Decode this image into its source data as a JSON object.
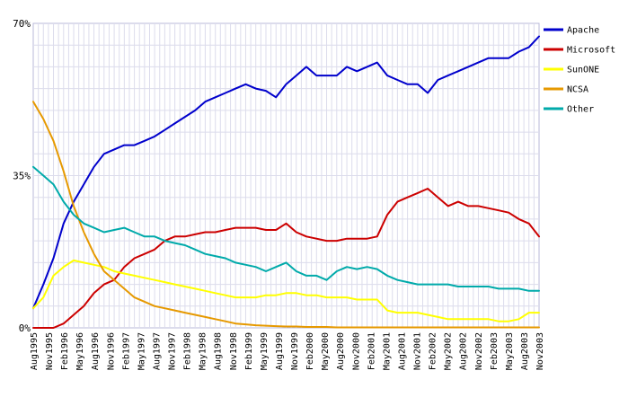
{
  "chart_data": {
    "type": "line",
    "title": "",
    "xlabel": "",
    "ylabel": "",
    "ylim": [
      0,
      70
    ],
    "y_tick_labels": [
      "0%",
      "35%",
      "70%"
    ],
    "y_tick_values": [
      0,
      35,
      70
    ],
    "grid": true,
    "legend_position": "top-right",
    "x_tick_labels": [
      "Aug1995",
      "Nov1995",
      "Feb1996",
      "May1996",
      "Aug1996",
      "Nov1996",
      "Feb1997",
      "May1997",
      "Aug1997",
      "Nov1997",
      "Feb1998",
      "May1998",
      "Aug1998",
      "Nov1998",
      "Feb1999",
      "May1999",
      "Aug1999",
      "Nov1999",
      "Feb2000",
      "May2000",
      "Aug2000",
      "Nov2000",
      "Feb2001",
      "May2001",
      "Aug2001",
      "Nov2001",
      "Feb2002",
      "May2002",
      "Aug2002",
      "Nov2002",
      "Feb2003",
      "May2003",
      "Aug2003",
      "Nov2003"
    ],
    "x": [
      "Aug1995",
      "Oct1995",
      "Dec1995",
      "Feb1996",
      "Apr1996",
      "Jun1996",
      "Aug1996",
      "Oct1996",
      "Dec1996",
      "Feb1997",
      "Apr1997",
      "Jun1997",
      "Aug1997",
      "Oct1997",
      "Dec1997",
      "Feb1998",
      "Apr1998",
      "Jun1998",
      "Aug1998",
      "Oct1998",
      "Dec1998",
      "Feb1999",
      "Apr1999",
      "Jun1999",
      "Aug1999",
      "Oct1999",
      "Dec1999",
      "Feb2000",
      "Apr2000",
      "Jun2000",
      "Aug2000",
      "Oct2000",
      "Dec2000",
      "Feb2001",
      "Apr2001",
      "Jun2001",
      "Aug2001",
      "Oct2001",
      "Dec2001",
      "Feb2002",
      "Apr2002",
      "Jun2002",
      "Aug2002",
      "Oct2002",
      "Dec2002",
      "Feb2003",
      "Apr2003",
      "Jun2003",
      "Aug2003",
      "Oct2003",
      "Nov2003"
    ],
    "series": [
      {
        "name": "Apache",
        "color": "#0000cc",
        "values": [
          4.5,
          10,
          16,
          24,
          29,
          33,
          37,
          40,
          41,
          42,
          42,
          43,
          44,
          45.5,
          47,
          48.5,
          50,
          52,
          53,
          54,
          55,
          56,
          55,
          54.5,
          53,
          56,
          58,
          60,
          58,
          58,
          58,
          60,
          59,
          60,
          61,
          58,
          57,
          56,
          56,
          54,
          57,
          58,
          59,
          60,
          61,
          62,
          62,
          62,
          63.5,
          64.5,
          67
        ]
      },
      {
        "name": "Microsoft",
        "color": "#cc0000",
        "values": [
          0,
          0,
          0,
          1,
          3,
          5,
          8,
          10,
          11,
          14,
          16,
          17,
          18,
          20,
          21,
          21,
          21.5,
          22,
          22,
          22.5,
          23,
          23,
          23,
          22.5,
          22.5,
          24,
          22,
          21,
          20.5,
          20,
          20,
          20.5,
          20.5,
          20.5,
          21,
          26,
          29,
          30,
          31,
          32,
          30,
          28,
          29,
          28,
          28,
          27.5,
          27,
          26.5,
          25,
          24,
          21
        ]
      },
      {
        "name": "SunONE",
        "color": "#ffff00",
        "values": [
          4.5,
          7,
          12,
          14,
          15.5,
          15,
          14.5,
          14,
          13,
          12.5,
          12,
          11.5,
          11,
          10.5,
          10,
          9.5,
          9,
          8.5,
          8,
          7.5,
          7,
          7,
          7,
          7.5,
          7.5,
          8,
          8,
          7.5,
          7.5,
          7,
          7,
          7,
          6.5,
          6.5,
          6.5,
          4,
          3.5,
          3.5,
          3.5,
          3,
          2.5,
          2,
          2,
          2,
          2,
          2,
          1.5,
          1.5,
          2,
          3.5,
          3.5
        ]
      },
      {
        "name": "NCSA",
        "color": "#e69900",
        "values": [
          52,
          48,
          43,
          36,
          28,
          22,
          17,
          13,
          11,
          9,
          7,
          6,
          5,
          4.5,
          4,
          3.5,
          3,
          2.5,
          2,
          1.5,
          1,
          0.8,
          0.6,
          0.5,
          0.4,
          0.3,
          0.3,
          0.2,
          0.2,
          0.2,
          0.1,
          0.1,
          0.1,
          0.1,
          0.1,
          0.1,
          0.1,
          0.1,
          0.1,
          0.1,
          0.1,
          0.1,
          0.1,
          0.1,
          0.1,
          0.1,
          0.1,
          0.1,
          0.1,
          0.1,
          0.1
        ]
      },
      {
        "name": "Other",
        "color": "#00aaaa",
        "values": [
          37,
          35,
          33,
          29,
          26,
          24,
          23,
          22,
          22.5,
          23,
          22,
          21,
          21,
          20,
          19.5,
          19,
          18,
          17,
          16.5,
          16,
          15,
          14.5,
          14,
          13,
          14,
          15,
          13,
          12,
          12,
          11,
          13,
          14,
          13.5,
          14,
          13.5,
          12,
          11,
          10.5,
          10,
          10,
          10,
          10,
          9.5,
          9.5,
          9.5,
          9.5,
          9,
          9,
          9,
          8.5,
          8.5
        ]
      }
    ]
  }
}
